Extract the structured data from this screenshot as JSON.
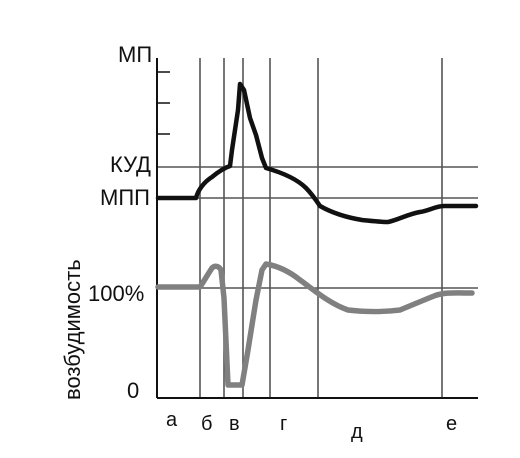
{
  "labels": {
    "mp": "МП",
    "kud": "КУД",
    "mpp": "МПП",
    "percent100": "100%",
    "zero": "0",
    "ylabel": "возбудимость"
  },
  "phases": [
    "а",
    "б",
    "в",
    "г",
    "д",
    "е"
  ],
  "colors": {
    "potential_curve": "#111111",
    "excitability_curve": "#808080",
    "grid": "#555555",
    "axis": "#111111"
  }
}
